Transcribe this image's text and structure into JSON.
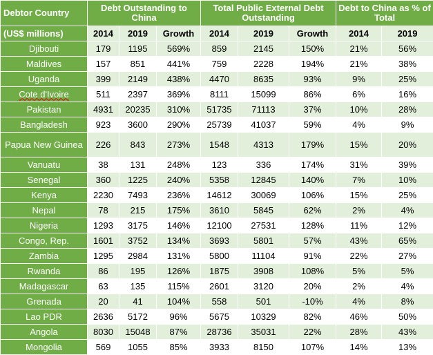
{
  "header": {
    "country_label": "Debtor Country",
    "units_label": "(US$ millions)",
    "group_debt_china": "Debt Outstanding to China",
    "group_total_external": "Total Public External Debt Outstanding",
    "group_pct": "Debt to China as % of Total",
    "year_2014": "2014",
    "year_2019": "2019",
    "growth": "Growth"
  },
  "rows": [
    {
      "country": "Djibouti",
      "c2014": "179",
      "c2019": "1195",
      "cgrowth": "569%",
      "t2014": "859",
      "t2019": "2145",
      "tgrowth": "150%",
      "p2014": "21%",
      "p2019": "56%"
    },
    {
      "country": "Maldives",
      "c2014": "157",
      "c2019": "851",
      "cgrowth": "441%",
      "t2014": "759",
      "t2019": "2228",
      "tgrowth": "194%",
      "p2014": "21%",
      "p2019": "38%"
    },
    {
      "country": "Uganda",
      "c2014": "399",
      "c2019": "2149",
      "cgrowth": "438%",
      "t2014": "4470",
      "t2019": "8635",
      "tgrowth": "93%",
      "p2014": "9%",
      "p2019": "25%"
    },
    {
      "country": "Cote d'Ivoire",
      "c2014": "511",
      "c2019": "2397",
      "cgrowth": "369%",
      "t2014": "8111",
      "t2019": "15099",
      "tgrowth": "86%",
      "p2014": "6%",
      "p2019": "16%"
    },
    {
      "country": "Pakistan",
      "c2014": "4931",
      "c2019": "20235",
      "cgrowth": "310%",
      "t2014": "51735",
      "t2019": "71113",
      "tgrowth": "37%",
      "p2014": "10%",
      "p2019": "28%"
    },
    {
      "country": "Bangladesh",
      "c2014": "923",
      "c2019": "3600",
      "cgrowth": "290%",
      "t2014": "25739",
      "t2019": "41037",
      "tgrowth": "59%",
      "p2014": "4%",
      "p2019": "9%"
    },
    {
      "country": "Papua New Guinea",
      "c2014": "226",
      "c2019": "843",
      "cgrowth": "273%",
      "t2014": "1548",
      "t2019": "4313",
      "tgrowth": "179%",
      "p2014": "15%",
      "p2019": "20%"
    },
    {
      "country": "Vanuatu",
      "c2014": "38",
      "c2019": "131",
      "cgrowth": "248%",
      "t2014": "123",
      "t2019": "336",
      "tgrowth": "174%",
      "p2014": "31%",
      "p2019": "39%"
    },
    {
      "country": "Senegal",
      "c2014": "360",
      "c2019": "1225",
      "cgrowth": "240%",
      "t2014": "5358",
      "t2019": "12845",
      "tgrowth": "140%",
      "p2014": "7%",
      "p2019": "10%"
    },
    {
      "country": "Kenya",
      "c2014": "2230",
      "c2019": "7493",
      "cgrowth": "236%",
      "t2014": "14612",
      "t2019": "30069",
      "tgrowth": "106%",
      "p2014": "15%",
      "p2019": "25%"
    },
    {
      "country": "Nepal",
      "c2014": "78",
      "c2019": "215",
      "cgrowth": "175%",
      "t2014": "3610",
      "t2019": "5845",
      "tgrowth": "62%",
      "p2014": "2%",
      "p2019": "4%"
    },
    {
      "country": "Nigeria",
      "c2014": "1293",
      "c2019": "3175",
      "cgrowth": "146%",
      "t2014": "12100",
      "t2019": "27531",
      "tgrowth": "128%",
      "p2014": "11%",
      "p2019": "12%"
    },
    {
      "country": "Congo, Rep.",
      "c2014": "1601",
      "c2019": "3752",
      "cgrowth": "134%",
      "t2014": "3693",
      "t2019": "5801",
      "tgrowth": "57%",
      "p2014": "43%",
      "p2019": "65%"
    },
    {
      "country": "Zambia",
      "c2014": "1295",
      "c2019": "2984",
      "cgrowth": "131%",
      "t2014": "5800",
      "t2019": "11104",
      "tgrowth": "91%",
      "p2014": "22%",
      "p2019": "27%"
    },
    {
      "country": "Rwanda",
      "c2014": "86",
      "c2019": "195",
      "cgrowth": "126%",
      "t2014": "1875",
      "t2019": "3908",
      "tgrowth": "108%",
      "p2014": "5%",
      "p2019": "5%"
    },
    {
      "country": "Madagascar",
      "c2014": "63",
      "c2019": "135",
      "cgrowth": "115%",
      "t2014": "2601",
      "t2019": "3120",
      "tgrowth": "20%",
      "p2014": "2%",
      "p2019": "4%"
    },
    {
      "country": "Grenada",
      "c2014": "20",
      "c2019": "41",
      "cgrowth": "104%",
      "t2014": "558",
      "t2019": "501",
      "tgrowth": "-10%",
      "p2014": "4%",
      "p2019": "8%"
    },
    {
      "country": "Lao PDR",
      "c2014": "2636",
      "c2019": "5172",
      "cgrowth": "96%",
      "t2014": "5675",
      "t2019": "10329",
      "tgrowth": "82%",
      "p2014": "46%",
      "p2019": "50%"
    },
    {
      "country": "Angola",
      "c2014": "8030",
      "c2019": "15048",
      "cgrowth": "87%",
      "t2014": "28736",
      "t2019": "35031",
      "tgrowth": "22%",
      "p2014": "28%",
      "p2019": "43%"
    },
    {
      "country": "Mongolia",
      "c2014": "569",
      "c2019": "1055",
      "cgrowth": "85%",
      "t2014": "3933",
      "t2019": "8150",
      "tgrowth": "107%",
      "p2014": "14%",
      "p2019": "13%"
    }
  ]
}
